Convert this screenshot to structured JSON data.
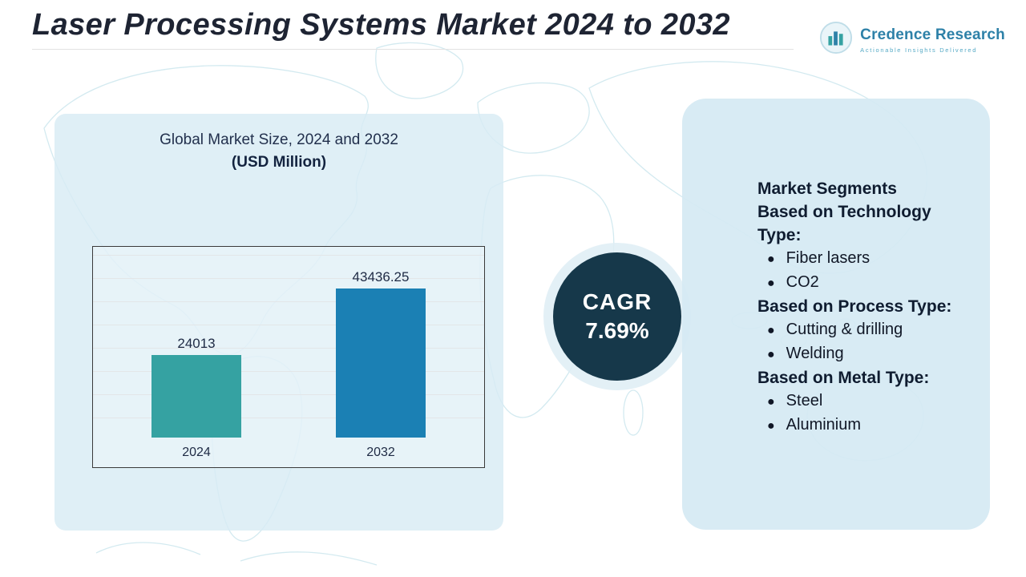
{
  "title": "Laser Processing Systems Market 2024 to 2032",
  "logo": {
    "name": "Credence Research",
    "tagline": "Actionable Insights Delivered"
  },
  "chart_data": {
    "type": "bar",
    "title": "Global Market Size, 2024 and 2032",
    "subtitle": "(USD Million)",
    "categories": [
      "2024",
      "2032"
    ],
    "values": [
      24013,
      43436.25
    ],
    "value_labels": [
      "24013",
      "43436.25"
    ],
    "bar_colors": [
      "#35a2a2",
      "#1b80b4"
    ],
    "axis_max": 48000,
    "grid": true,
    "legend": false,
    "xlabel": "",
    "ylabel": ""
  },
  "cagr": {
    "label": "CAGR",
    "value": "7.69%"
  },
  "segments": {
    "heading": "Market Segments",
    "groups": [
      {
        "label": "Based on Technology Type:",
        "items": [
          "Fiber lasers",
          "CO2"
        ]
      },
      {
        "label": "Based on Process Type:",
        "items": [
          "Cutting & drilling",
          "Welding"
        ]
      },
      {
        "label": "Based on Metal Type:",
        "items": [
          "Steel",
          "Aluminium"
        ]
      }
    ]
  },
  "colors": {
    "bar_2024": "#35a2a2",
    "bar_2032": "#1b80b4",
    "cagr_circle": "#16384a",
    "panel_background": "#d5e9f3",
    "brand_teal": "#2e81a8",
    "map_line": "#cfe8ef"
  }
}
